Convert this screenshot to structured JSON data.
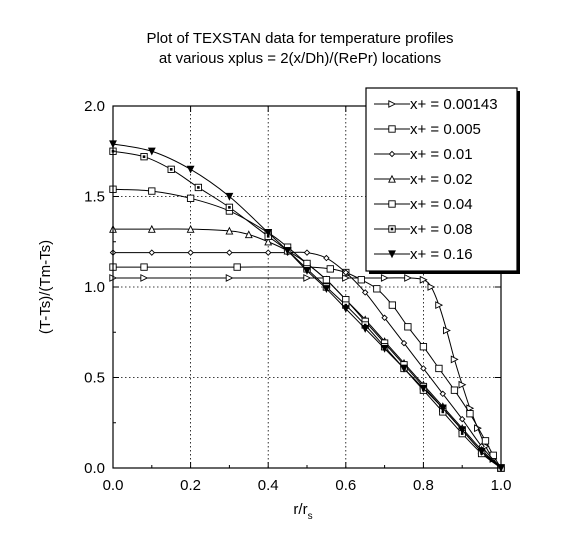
{
  "chart_data": {
    "type": "line",
    "title_lines": [
      "Plot of TEXSTAN data for temperature profiles",
      "at various xplus = 2(x/Dh)/(RePr) locations"
    ],
    "xlabel_main": "r/r",
    "xlabel_sub": "s",
    "ylabel": "(T-Ts)/(Tm-Ts)",
    "xlim": [
      0,
      1
    ],
    "ylim": [
      0,
      2
    ],
    "xticks": [
      "0.0",
      "0.2",
      "0.4",
      "0.6",
      "0.8",
      "1.0"
    ],
    "yticks": [
      "0.0",
      "0.5",
      "1.0",
      "1.5",
      "2.0"
    ],
    "grid": true,
    "legend_position": "top-right",
    "series": [
      {
        "name": "x+ = 0.00143",
        "marker": "triangle-right",
        "x": [
          0.0,
          0.08,
          0.3,
          0.5,
          0.6,
          0.7,
          0.76,
          0.8,
          0.82,
          0.84,
          0.86,
          0.88,
          0.9,
          0.92,
          0.94,
          0.96,
          0.98,
          1.0
        ],
        "y": [
          1.05,
          1.05,
          1.05,
          1.05,
          1.05,
          1.05,
          1.05,
          1.04,
          1.0,
          0.9,
          0.76,
          0.6,
          0.46,
          0.33,
          0.22,
          0.12,
          0.05,
          0.0
        ]
      },
      {
        "name": "x+ = 0.005",
        "marker": "square",
        "x": [
          0.0,
          0.08,
          0.32,
          0.5,
          0.56,
          0.6,
          0.64,
          0.68,
          0.72,
          0.76,
          0.8,
          0.84,
          0.88,
          0.92,
          0.96,
          0.98,
          1.0
        ],
        "y": [
          1.11,
          1.11,
          1.11,
          1.11,
          1.1,
          1.08,
          1.04,
          0.99,
          0.9,
          0.78,
          0.67,
          0.55,
          0.43,
          0.3,
          0.15,
          0.07,
          0.0
        ]
      },
      {
        "name": "x+ = 0.01",
        "marker": "diamond",
        "x": [
          0.0,
          0.1,
          0.2,
          0.3,
          0.4,
          0.45,
          0.5,
          0.55,
          0.6,
          0.65,
          0.7,
          0.75,
          0.8,
          0.85,
          0.9,
          0.95,
          1.0
        ],
        "y": [
          1.19,
          1.19,
          1.19,
          1.19,
          1.19,
          1.19,
          1.19,
          1.16,
          1.08,
          0.97,
          0.83,
          0.69,
          0.55,
          0.41,
          0.27,
          0.12,
          0.0
        ]
      },
      {
        "name": "x+ = 0.02",
        "marker": "triangle-up",
        "x": [
          0.0,
          0.1,
          0.2,
          0.3,
          0.35,
          0.4,
          0.45,
          0.5,
          0.55,
          0.6,
          0.65,
          0.7,
          0.75,
          0.8,
          0.85,
          0.9,
          0.95,
          1.0
        ],
        "y": [
          1.32,
          1.32,
          1.32,
          1.31,
          1.29,
          1.25,
          1.2,
          1.13,
          1.04,
          0.93,
          0.82,
          0.7,
          0.58,
          0.46,
          0.34,
          0.22,
          0.1,
          0.0
        ]
      },
      {
        "name": "x+ = 0.04",
        "marker": "square",
        "x": [
          0.0,
          0.1,
          0.2,
          0.3,
          0.4,
          0.45,
          0.5,
          0.55,
          0.6,
          0.65,
          0.7,
          0.75,
          0.8,
          0.85,
          0.9,
          0.95,
          1.0
        ],
        "y": [
          1.54,
          1.53,
          1.49,
          1.42,
          1.3,
          1.22,
          1.13,
          1.04,
          0.93,
          0.81,
          0.69,
          0.57,
          0.45,
          0.33,
          0.21,
          0.09,
          0.0
        ]
      },
      {
        "name": "x+ = 0.08",
        "marker": "square-filled",
        "x": [
          0.0,
          0.08,
          0.15,
          0.22,
          0.3,
          0.4,
          0.45,
          0.5,
          0.55,
          0.6,
          0.65,
          0.7,
          0.75,
          0.8,
          0.85,
          0.9,
          0.95,
          1.0
        ],
        "y": [
          1.75,
          1.72,
          1.65,
          1.55,
          1.44,
          1.28,
          1.2,
          1.1,
          1.0,
          0.9,
          0.79,
          0.67,
          0.55,
          0.43,
          0.31,
          0.19,
          0.08,
          0.0
        ]
      },
      {
        "name": "x+ = 0.16",
        "marker": "triangle-down-filled",
        "x": [
          0.0,
          0.1,
          0.2,
          0.3,
          0.4,
          0.45,
          0.5,
          0.55,
          0.6,
          0.65,
          0.7,
          0.75,
          0.8,
          0.85,
          0.9,
          0.95,
          1.0
        ],
        "y": [
          1.79,
          1.75,
          1.65,
          1.5,
          1.3,
          1.2,
          1.09,
          0.99,
          0.88,
          0.77,
          0.66,
          0.55,
          0.44,
          0.33,
          0.21,
          0.09,
          0.0
        ]
      }
    ]
  }
}
